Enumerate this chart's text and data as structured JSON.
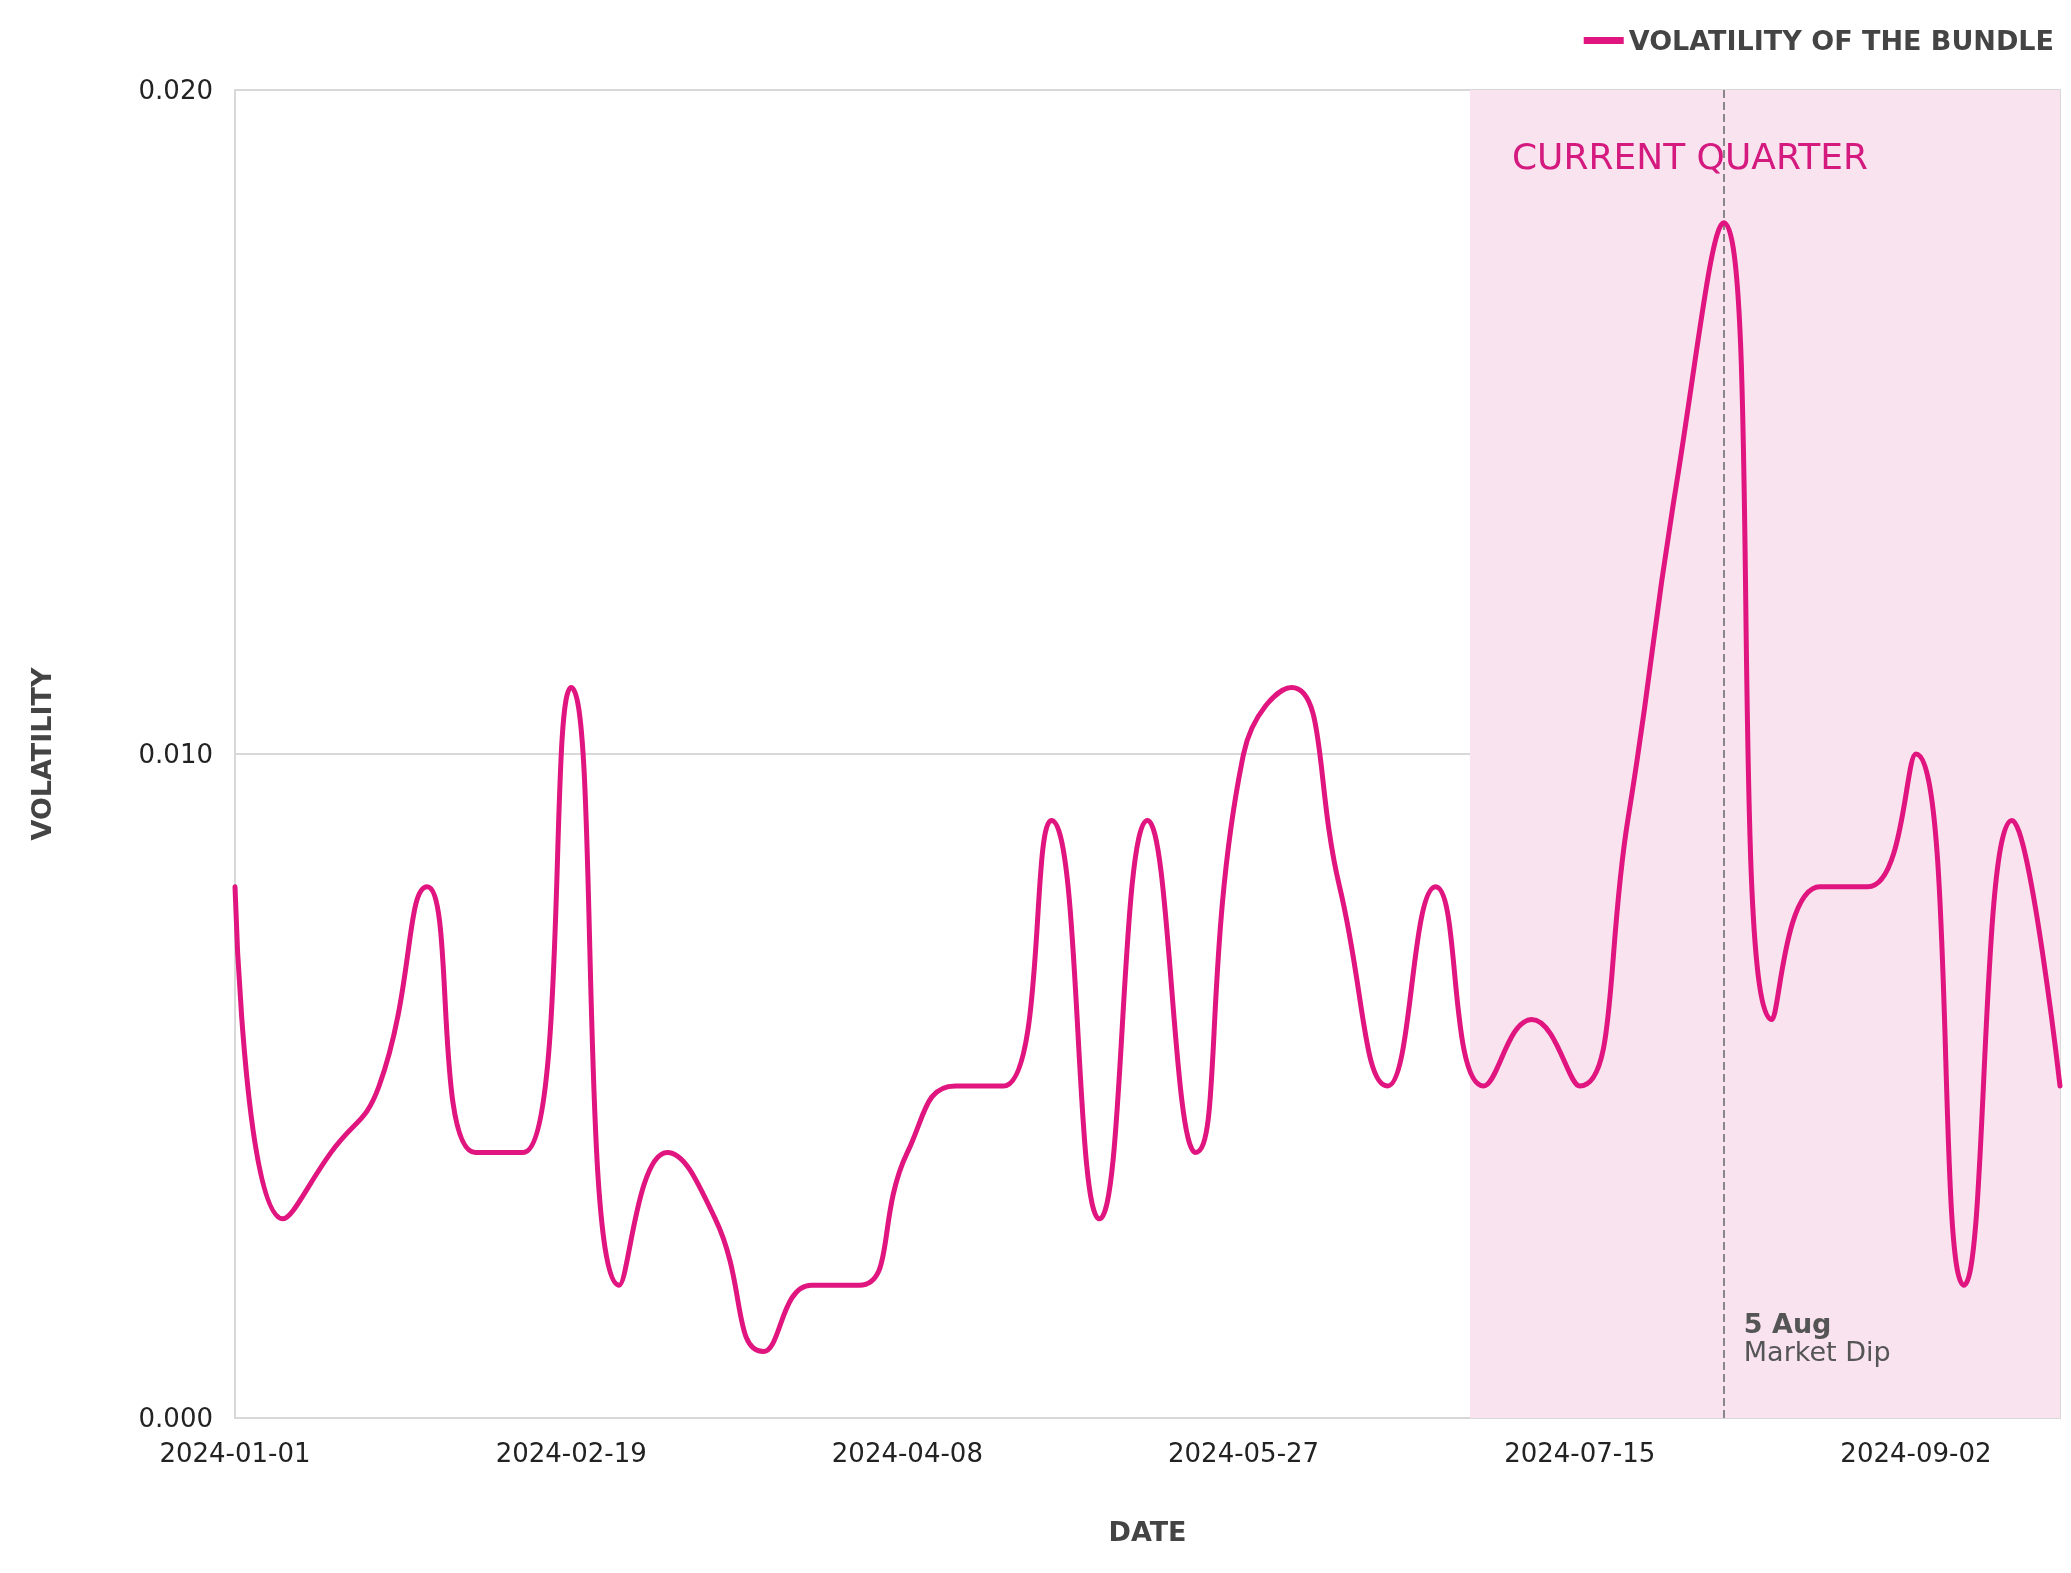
{
  "chart_data": {
    "type": "line",
    "xlabel": "DATE",
    "ylabel": "VOLATILITY",
    "x": [
      "2024-01-01",
      "2024-01-08",
      "2024-01-15",
      "2024-01-22",
      "2024-01-29",
      "2024-02-05",
      "2024-02-12",
      "2024-02-19",
      "2024-02-26",
      "2024-03-04",
      "2024-03-11",
      "2024-03-18",
      "2024-03-25",
      "2024-04-01",
      "2024-04-08",
      "2024-04-15",
      "2024-04-22",
      "2024-04-29",
      "2024-05-06",
      "2024-05-13",
      "2024-05-20",
      "2024-05-27",
      "2024-06-03",
      "2024-06-10",
      "2024-06-17",
      "2024-06-24",
      "2024-07-01",
      "2024-07-08",
      "2024-07-15",
      "2024-07-22",
      "2024-07-29",
      "2024-08-05",
      "2024-08-12",
      "2024-08-19",
      "2024-08-26",
      "2024-09-02",
      "2024-09-09",
      "2024-09-16",
      "2024-09-23"
    ],
    "series": [
      {
        "name": "VOLATILITY OF THE BUNDLE",
        "color": "#e0157f",
        "values": [
          0.008,
          0.003,
          0.004,
          0.005,
          0.008,
          0.004,
          0.004,
          0.011,
          0.002,
          0.004,
          0.003,
          0.001,
          0.002,
          0.002,
          0.004,
          0.005,
          0.005,
          0.009,
          0.003,
          0.009,
          0.004,
          0.01,
          0.011,
          0.008,
          0.005,
          0.008,
          0.005,
          0.006,
          0.005,
          0.009,
          0.014,
          0.018,
          0.006,
          0.008,
          0.008,
          0.01,
          0.002,
          0.009,
          0.005
        ]
      }
    ],
    "xlim": [
      "2024-01-01",
      "2024-09-23"
    ],
    "xticks": [
      "2024-01-01",
      "2024-02-19",
      "2024-04-08",
      "2024-05-27",
      "2024-07-15",
      "2024-09-02"
    ],
    "ylim": [
      0,
      0.02
    ],
    "yticks": [
      {
        "value": 0,
        "label": "0.000"
      },
      {
        "value": 0.01,
        "label": "0.010"
      },
      {
        "value": 0.02,
        "label": "0.020"
      }
    ],
    "grid": "y",
    "legend": "top right",
    "marker": "none",
    "line_style": "solid",
    "bands": [
      {
        "axis": "x",
        "from": "2024-06-29",
        "to": "2024-09-23",
        "label": "CURRENT QUARTER",
        "color": "#f9e3ef"
      }
    ],
    "ref_lines": [
      {
        "axis": "x",
        "value": "2024-08-05",
        "label": "5 Aug",
        "color": "#888888",
        "line_style": "dashed"
      }
    ],
    "annotations": [
      {
        "text": "Market Dip",
        "x": "2024-08-05",
        "y": 0.0007
      }
    ]
  }
}
